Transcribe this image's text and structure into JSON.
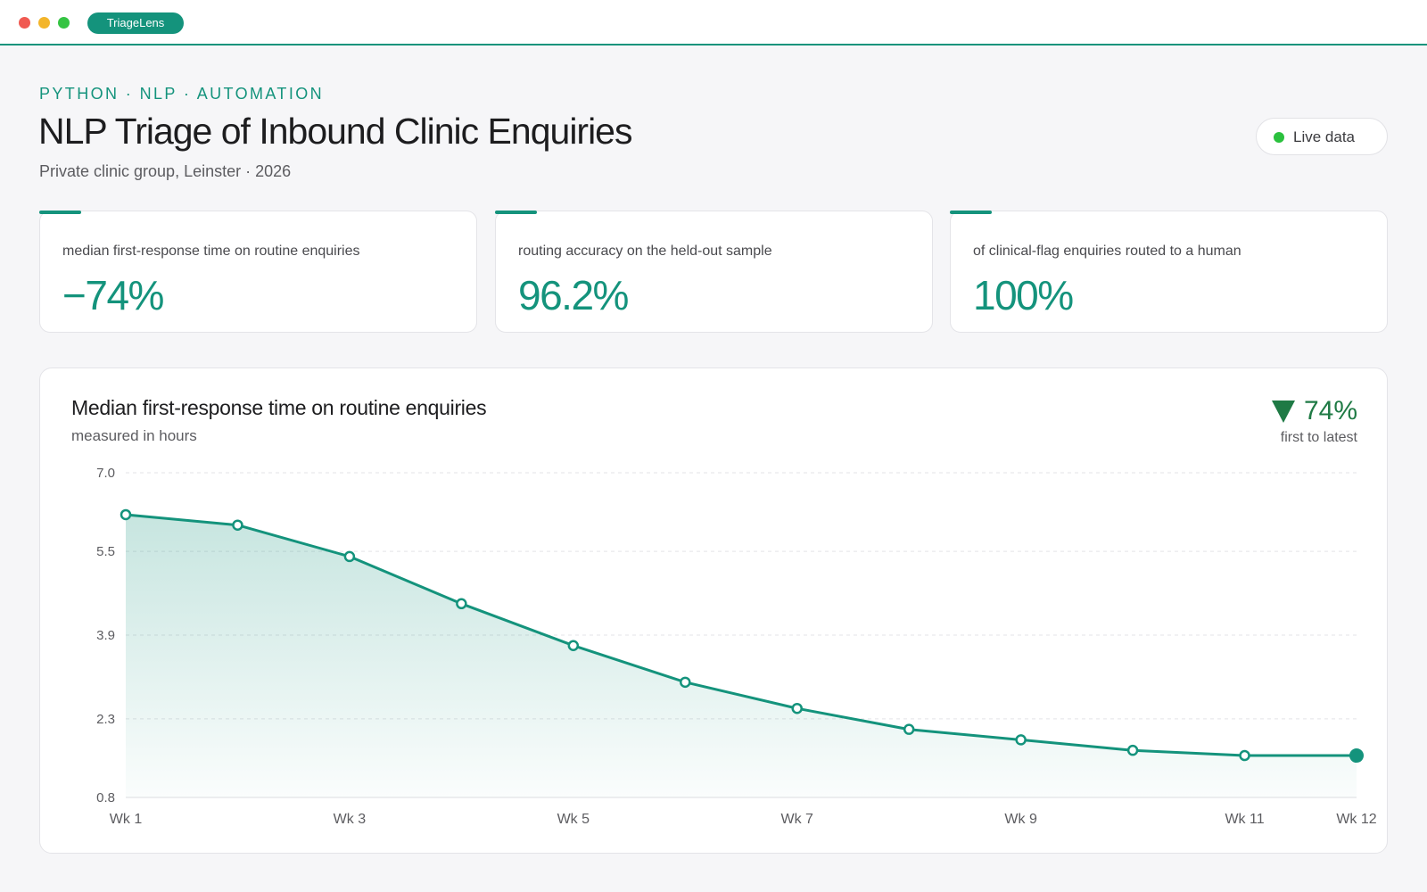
{
  "window": {
    "app_name": "TriageLens"
  },
  "header": {
    "eyebrow": "PYTHON · NLP · AUTOMATION",
    "title": "NLP Triage of Inbound Clinic Enquiries",
    "subtitle": "Private clinic group, Leinster · 2026",
    "status_label": "Live data"
  },
  "kpis": [
    {
      "label": "median first-response time on routine enquiries",
      "value": "−74%"
    },
    {
      "label": "routing accuracy on the held-out sample",
      "value": "96.2%"
    },
    {
      "label": "of clinical-flag enquiries routed to a human",
      "value": "100%"
    }
  ],
  "chart": {
    "title": "Median first-response time on routine enquiries",
    "subtitle": "measured in hours",
    "delta_value": "74%",
    "delta_caption": "first to latest"
  },
  "colors": {
    "accent": "#14937c",
    "delta": "#1f7a45",
    "live": "#2bc13e"
  },
  "chart_data": {
    "type": "area",
    "title": "Median first-response time on routine enquiries",
    "subtitle": "measured in hours",
    "x": [
      "Wk 1",
      "Wk 2",
      "Wk 3",
      "Wk 4",
      "Wk 5",
      "Wk 6",
      "Wk 7",
      "Wk 8",
      "Wk 9",
      "Wk 10",
      "Wk 11",
      "Wk 12"
    ],
    "x_tick_labels": [
      "Wk 1",
      "Wk 3",
      "Wk 5",
      "Wk 7",
      "Wk 9",
      "Wk 11",
      "Wk 12"
    ],
    "series": [
      {
        "values": [
          6.2,
          6.0,
          5.4,
          4.5,
          3.7,
          3.0,
          2.5,
          2.1,
          1.9,
          1.7,
          1.6,
          1.6
        ]
      }
    ],
    "ylim": [
      0.8,
      7.0
    ],
    "y_ticks": [
      "0.8",
      "2.3",
      "3.9",
      "5.5",
      "7.0"
    ],
    "grid": true
  }
}
